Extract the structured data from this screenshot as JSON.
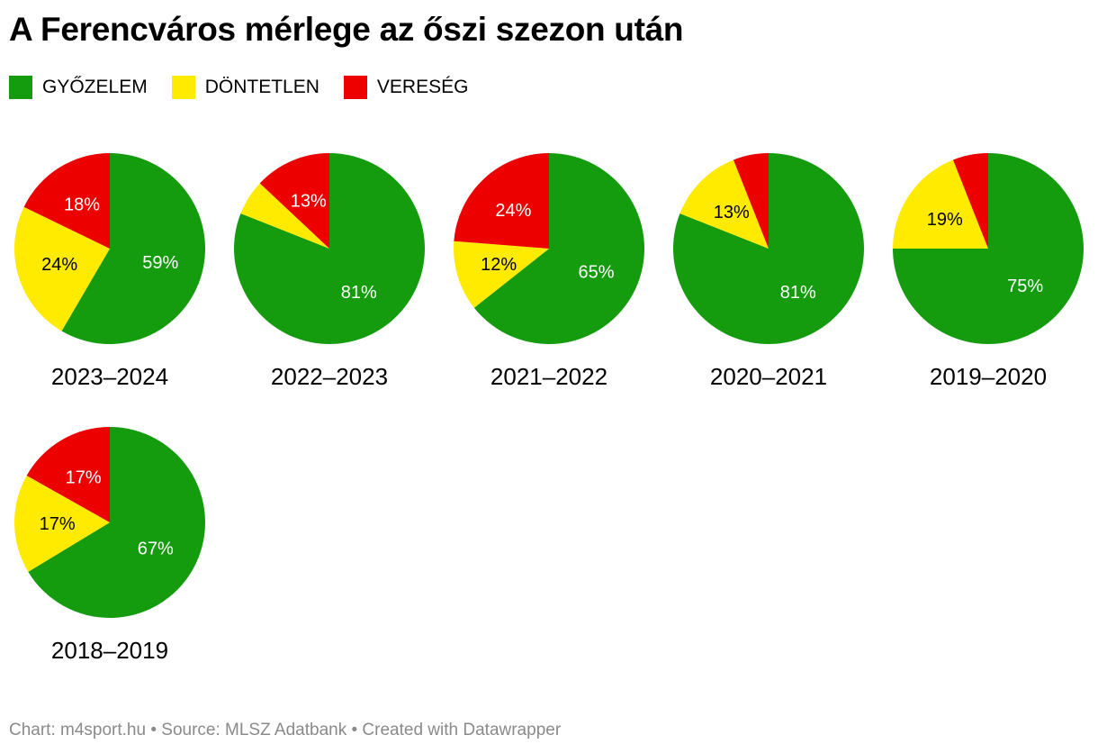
{
  "chart_data": {
    "type": "pie",
    "title": "A Ferencváros mérlege az őszi szezon után",
    "legend": {
      "placement": "top-left",
      "entries": [
        {
          "key": "win",
          "label": "GYŐZELEM",
          "color": "#159c0e"
        },
        {
          "key": "draw",
          "label": "DÖNTETLEN",
          "color": "#ffeb00"
        },
        {
          "key": "loss",
          "label": "VERESÉG",
          "color": "#ec0000"
        }
      ]
    },
    "charts": [
      {
        "season": "2023–2024",
        "win": 59,
        "draw": 24,
        "loss": 18,
        "labels": {
          "win": "59%",
          "draw": "24%",
          "loss": "18%"
        }
      },
      {
        "season": "2022–2023",
        "win": 81,
        "draw": 6,
        "loss": 13,
        "labels": {
          "win": "81%",
          "draw": "",
          "loss": "13%"
        }
      },
      {
        "season": "2021–2022",
        "win": 65,
        "draw": 12,
        "loss": 24,
        "labels": {
          "win": "65%",
          "draw": "12%",
          "loss": "24%"
        }
      },
      {
        "season": "2020–2021",
        "win": 81,
        "draw": 13,
        "loss": 6,
        "labels": {
          "win": "81%",
          "draw": "13%",
          "loss": ""
        }
      },
      {
        "season": "2019–2020",
        "win": 75,
        "draw": 19,
        "loss": 6,
        "labels": {
          "win": "75%",
          "draw": "19%",
          "loss": ""
        }
      },
      {
        "season": "2018–2019",
        "win": 67,
        "draw": 17,
        "loss": 17,
        "labels": {
          "win": "67%",
          "draw": "17%",
          "loss": "17%"
        }
      }
    ]
  },
  "footer": {
    "text": "Chart: m4sport.hu • Source: MLSZ Adatbank • Created with Datawrapper"
  }
}
